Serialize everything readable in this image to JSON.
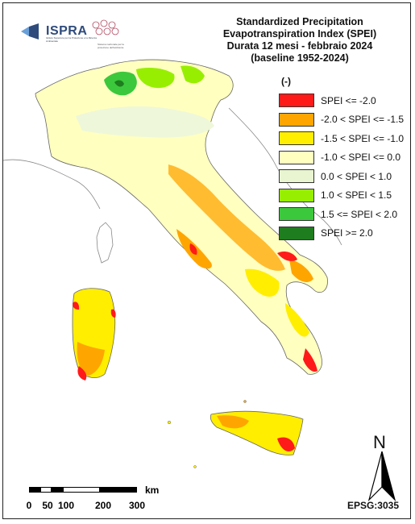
{
  "header": {
    "title_lines": [
      "Standardized Precipitation",
      "Evapotranspiration  Index (SPEI)",
      "Durata 12 mesi - febbraio 2024",
      "(baseline 1952-2024)"
    ]
  },
  "logos": {
    "ispra_name": "ISPRA",
    "ispra_subtitle": "Istituto Superiore per la Protezione e la Ricerca Ambientale",
    "snpa_subtitle": "Sistema nazionale per la protezione dell'ambiente"
  },
  "legend": {
    "unit": "(-)",
    "items": [
      {
        "label": "SPEI <= -2.0",
        "color": "#ff1a1a"
      },
      {
        "label": "-2.0 < SPEI <= -1.5",
        "color": "#ffa500"
      },
      {
        "label": "-1.5 < SPEI <= -1.0",
        "color": "#ffee00"
      },
      {
        "label": "-1.0 < SPEI <= 0.0",
        "color": "#ffffc0"
      },
      {
        "label": "0.0 < SPEI < 1.0",
        "color": "#e8f5d0"
      },
      {
        "label": "1.0 < SPEI < 1.5",
        "color": "#98ee00"
      },
      {
        "label": "1.5 <= SPEI < 2.0",
        "color": "#3cc83c"
      },
      {
        "label": "SPEI >= 2.0",
        "color": "#1e7d1e"
      }
    ]
  },
  "scale": {
    "unit": "km",
    "ticks": [
      "0",
      "50",
      "100",
      "200",
      "300"
    ]
  },
  "north": {
    "label": "N"
  },
  "crs": {
    "label": "EPSG:3035"
  }
}
